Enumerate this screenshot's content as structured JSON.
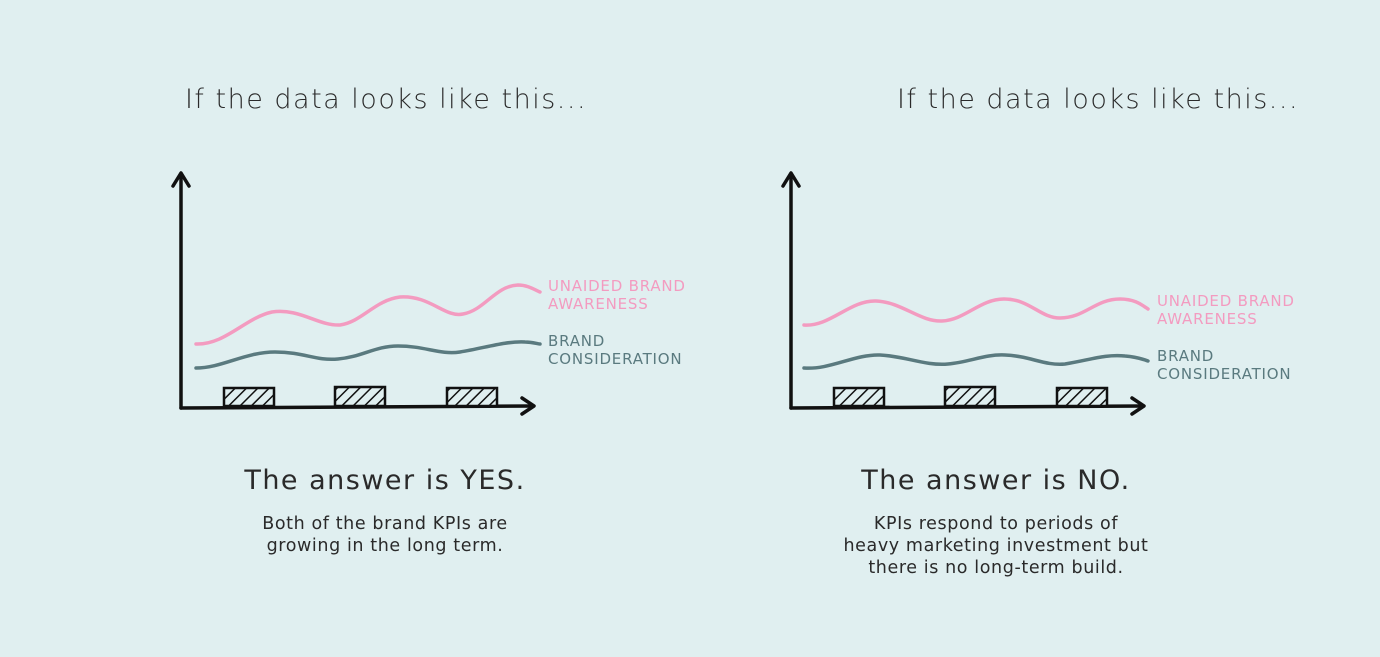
{
  "colors": {
    "background": "#e0eff0",
    "awareness": "#f39bc0",
    "consideration": "#5a7a7f",
    "axis": "#111111"
  },
  "panels": [
    {
      "heading": "If the data looks like this...",
      "answer": "The answer is YES.",
      "description": "Both of the brand KPIs are\ngrowing in the long term."
    },
    {
      "heading": "If the data looks like this...",
      "answer": "The answer is NO.",
      "description": "KPIs respond to periods of\nheavy marketing investment but\nthere is no long-term build."
    }
  ],
  "chart_data": [
    {
      "type": "line",
      "title": "If the data looks like this...",
      "trend": "growing",
      "series": [
        {
          "name": "UNAIDED BRAND AWARENESS",
          "color": "#f39bc0"
        },
        {
          "name": "BRAND CONSIDERATION",
          "color": "#5a7a7f"
        }
      ],
      "investment_periods": 3
    },
    {
      "type": "line",
      "title": "If the data looks like this...",
      "trend": "flat",
      "series": [
        {
          "name": "UNAIDED BRAND AWARENESS",
          "color": "#f39bc0"
        },
        {
          "name": "BRAND CONSIDERATION",
          "color": "#5a7a7f"
        }
      ],
      "investment_periods": 3
    }
  ]
}
